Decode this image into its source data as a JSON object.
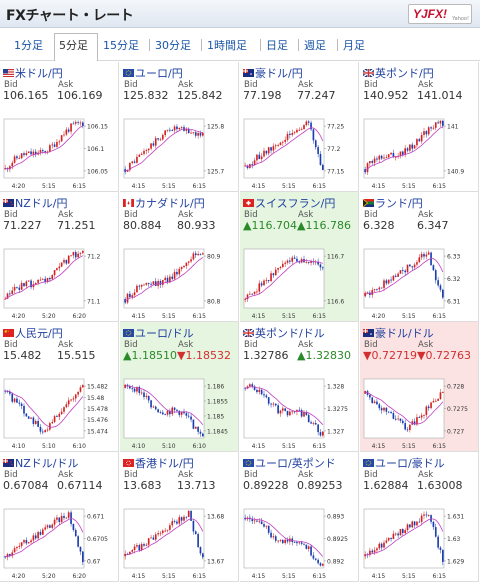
{
  "header": {
    "title": "FXチャート・レート",
    "logo_text": "YJFX!",
    "logo_sub": "Yahoo!"
  },
  "tabs": [
    {
      "label": "1分足",
      "active": false
    },
    {
      "label": "5分足",
      "active": true
    },
    {
      "label": "15分足",
      "active": false
    },
    {
      "label": "30分足",
      "active": false
    },
    {
      "label": "1時間足",
      "active": false
    },
    {
      "label": "日足",
      "active": false
    },
    {
      "label": "週足",
      "active": false
    },
    {
      "label": "月足",
      "active": false
    }
  ],
  "labels": {
    "bid": "Bid",
    "ask": "Ask"
  },
  "pairs": [
    {
      "name": "米ドル/円",
      "bid": "106.165",
      "ask": "106.169",
      "state": "normal",
      "flag": "us",
      "chart_data": {
        "type": "candlestick",
        "x_labels": [
          "4:20",
          "5:15",
          "6:15"
        ],
        "y_ticks": [
          "106.15",
          "106.1",
          "106.05"
        ],
        "trend": "up"
      }
    },
    {
      "name": "ユーロ/円",
      "bid": "125.832",
      "ask": "125.842",
      "state": "normal",
      "flag": "eu",
      "chart_data": {
        "type": "candlestick",
        "x_labels": [
          "4:15",
          "5:15",
          "6:15"
        ],
        "y_ticks": [
          "125.8",
          "125.7"
        ],
        "trend": "up-flat"
      }
    },
    {
      "name": "豪ドル/円",
      "bid": "77.198",
      "ask": "77.247",
      "state": "normal",
      "flag": "au",
      "chart_data": {
        "type": "candlestick",
        "x_labels": [
          "4:15",
          "5:15",
          "6:15"
        ],
        "y_ticks": [
          "77.25",
          "77.2",
          "77.15"
        ],
        "trend": "up-drop"
      }
    },
    {
      "name": "英ポンド/円",
      "bid": "140.952",
      "ask": "141.014",
      "state": "normal",
      "flag": "gb",
      "chart_data": {
        "type": "candlestick",
        "x_labels": [
          "4:15",
          "5:15",
          "6:15"
        ],
        "y_ticks": [
          "141",
          "140.9"
        ],
        "trend": "up"
      }
    },
    {
      "name": "NZドル/円",
      "bid": "71.227",
      "ask": "71.251",
      "state": "normal",
      "flag": "nz",
      "chart_data": {
        "type": "candlestick",
        "x_labels": [
          "4:20",
          "5:20",
          "6:20"
        ],
        "y_ticks": [
          "71.2",
          "71.1"
        ],
        "trend": "up"
      }
    },
    {
      "name": "カナダドル/円",
      "bid": "80.884",
      "ask": "80.933",
      "state": "normal",
      "flag": "ca",
      "chart_data": {
        "type": "candlestick",
        "x_labels": [
          "4:15",
          "5:15",
          "6:15"
        ],
        "y_ticks": [
          "80.9",
          "80.8"
        ],
        "trend": "up"
      }
    },
    {
      "name": "スイスフラン/円",
      "bid": "▲116.704",
      "ask": "▲116.786",
      "state": "up",
      "flag": "ch",
      "chart_data": {
        "type": "candlestick",
        "x_labels": [
          "4:15",
          "5:15",
          "6:15"
        ],
        "y_ticks": [
          "116.7",
          "116.6"
        ],
        "trend": "up-flat"
      }
    },
    {
      "name": "ランド/円",
      "bid": "6.328",
      "ask": "6.347",
      "state": "normal",
      "flag": "za",
      "chart_data": {
        "type": "candlestick",
        "x_labels": [
          "4:20",
          "5:15",
          "6:15"
        ],
        "y_ticks": [
          "6.33",
          "6.32",
          "6.31"
        ],
        "trend": "up-drop"
      }
    },
    {
      "name": "人民元/円",
      "bid": "15.482",
      "ask": "15.515",
      "state": "normal",
      "flag": "cn",
      "chart_data": {
        "type": "candlestick",
        "x_labels": [
          "4:10",
          "5:10",
          "6:10"
        ],
        "y_ticks": [
          "15.482",
          "15.48",
          "15.478",
          "15.476",
          "15.474"
        ],
        "trend": "v"
      }
    },
    {
      "name": "ユーロ/ドル",
      "bid": "▲1.18510",
      "ask": "▼1.18532",
      "state": "up",
      "flag": "eu",
      "chart_data": {
        "type": "candlestick",
        "x_labels": [
          "4:10",
          "5:10",
          "6:10"
        ],
        "y_ticks": [
          "1.186",
          "1.1855",
          "1.185",
          "1.1845"
        ],
        "trend": "down"
      }
    },
    {
      "name": "英ポンド/ドル",
      "bid": "1.32786",
      "ask": "▲1.32830",
      "state": "normal",
      "flag": "gb",
      "chart_data": {
        "type": "candlestick",
        "x_labels": [
          "4:15",
          "5:15",
          "6:15"
        ],
        "y_ticks": [
          "1.328",
          "1.3275",
          "1.327"
        ],
        "trend": "down"
      }
    },
    {
      "name": "豪ドル/ドル",
      "bid": "▼0.72719",
      "ask": "▼0.72763",
      "state": "down",
      "flag": "au",
      "chart_data": {
        "type": "candlestick",
        "x_labels": [
          "4:15",
          "5:15",
          "6:15"
        ],
        "y_ticks": [
          "0.728",
          "0.7275",
          "0.727"
        ],
        "trend": "down-up"
      }
    },
    {
      "name": "NZドル/ドル",
      "bid": "0.67084",
      "ask": "0.67114",
      "state": "normal",
      "flag": "nz",
      "chart_data": {
        "type": "candlestick",
        "x_labels": [
          "4:20",
          "5:20",
          "6:20"
        ],
        "y_ticks": [
          "0.671",
          "0.6705",
          "0.67"
        ],
        "trend": "up-drop"
      }
    },
    {
      "name": "香港ドル/円",
      "bid": "13.683",
      "ask": "13.713",
      "state": "normal",
      "flag": "hk",
      "chart_data": {
        "type": "candlestick",
        "x_labels": [
          "4:15",
          "5:15",
          "6:15"
        ],
        "y_ticks": [
          "13.68",
          "13.67"
        ],
        "trend": "up-drop"
      }
    },
    {
      "name": "ユーロ/英ポンド",
      "bid": "0.89228",
      "ask": "0.89253",
      "state": "normal",
      "flag": "eu",
      "chart_data": {
        "type": "candlestick",
        "x_labels": [
          "4:15",
          "5:15",
          "6:15"
        ],
        "y_ticks": [
          "0.893",
          "0.8925",
          "0.892"
        ],
        "trend": "down"
      }
    },
    {
      "name": "ユーロ/豪ドル",
      "bid": "1.62884",
      "ask": "1.63008",
      "state": "normal",
      "flag": "eu",
      "chart_data": {
        "type": "candlestick",
        "x_labels": [
          "4:15",
          "5:15",
          "6:15"
        ],
        "y_ticks": [
          "1.631",
          "1.63",
          "1.629"
        ],
        "trend": "up-drop"
      }
    }
  ],
  "colors": {
    "up_candle": "#d42020",
    "down_candle": "#1a3db0",
    "ma_line": "#c040c0",
    "link": "#1f3fa0"
  }
}
